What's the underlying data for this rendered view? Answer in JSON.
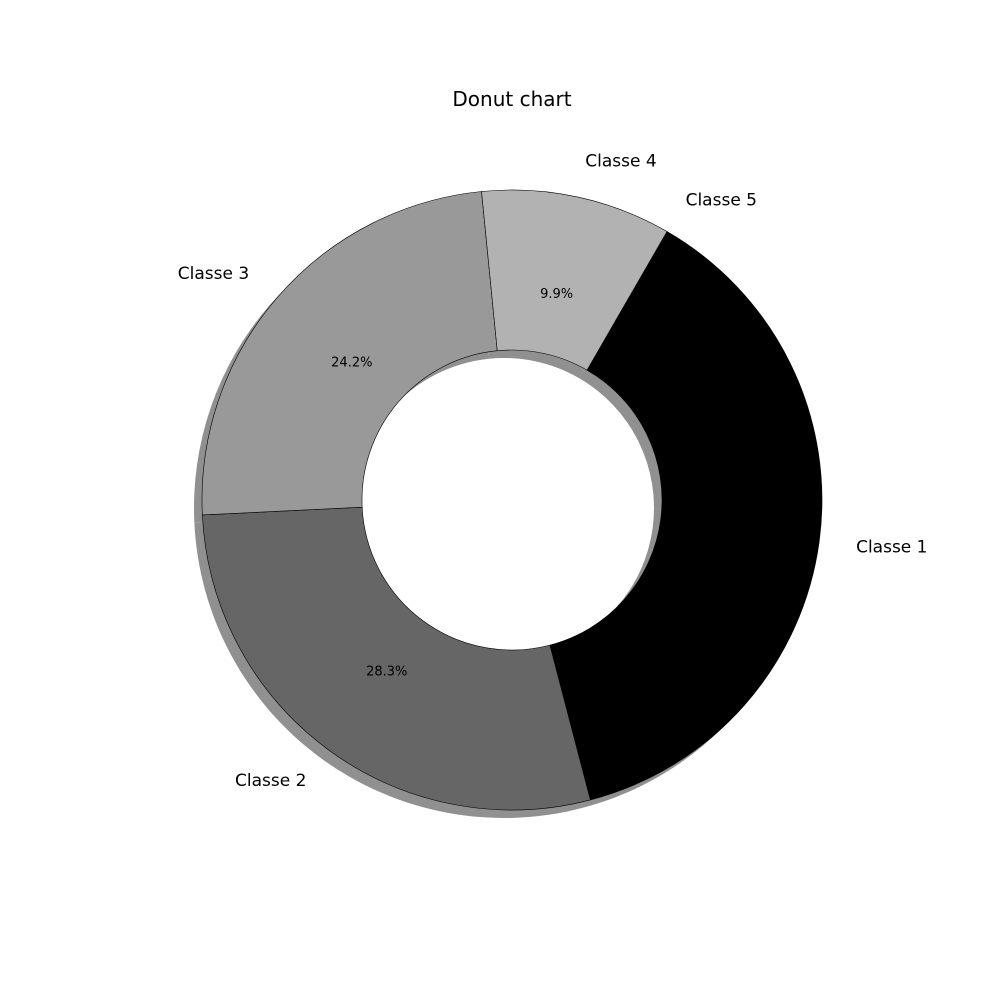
{
  "chart_data": {
    "type": "pie",
    "variant": "donut",
    "title": "Donut chart",
    "categories": [
      "Classe 1",
      "Classe 2",
      "Classe 3",
      "Classe 4",
      "Classe 5"
    ],
    "values": [
      37.6,
      28.3,
      24.2,
      9.9,
      0
    ],
    "percent_labels": [
      "",
      "28.3%",
      "24.2%",
      "9.9%",
      ""
    ],
    "colors": [
      "#000000",
      "#666666",
      "#999999",
      "#b2b2b2",
      "#e5e5e5"
    ],
    "shadow": true,
    "legend": "none"
  }
}
